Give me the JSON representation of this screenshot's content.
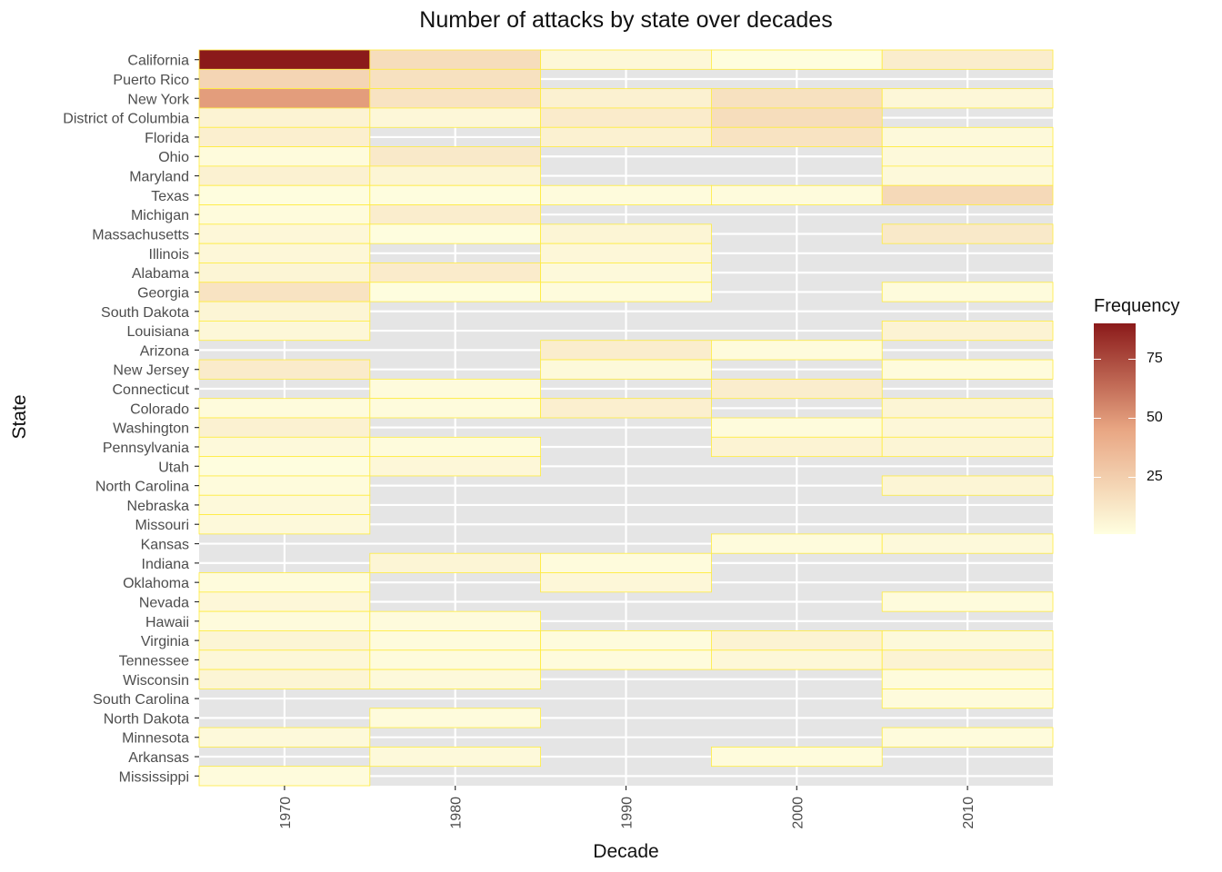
{
  "chart_data": {
    "type": "heatmap",
    "title": "Number of attacks by state over decades",
    "xlabel": "Decade",
    "ylabel": "State",
    "x_ticks": [
      "1970",
      "1980",
      "1990",
      "2000",
      "2010"
    ],
    "decades": [
      1970,
      1980,
      1990,
      2000,
      2010
    ],
    "states": [
      "California",
      "Puerto Rico",
      "New York",
      "District of Columbia",
      "Florida",
      "Ohio",
      "Maryland",
      "Texas",
      "Michigan",
      "Massachusetts",
      "Illinois",
      "Alabama",
      "Georgia",
      "South Dakota",
      "Louisiana",
      "Arizona",
      "New Jersey",
      "Connecticut",
      "Colorado",
      "Washington",
      "Pennsylvania",
      "Utah",
      "North Carolina",
      "Nebraska",
      "Missouri",
      "Kansas",
      "Indiana",
      "Oklahoma",
      "Nevada",
      "Hawaii",
      "Virginia",
      "Tennessee",
      "Wisconsin",
      "South Carolina",
      "North Dakota",
      "Minnesota",
      "Arkansas",
      "Mississippi"
    ],
    "values": [
      [
        90,
        18,
        5,
        2,
        10
      ],
      [
        22,
        16,
        null,
        null,
        null
      ],
      [
        48,
        15,
        8,
        16,
        5
      ],
      [
        7,
        5,
        11,
        18,
        null
      ],
      [
        9,
        null,
        8,
        15,
        4
      ],
      [
        3,
        12,
        null,
        null,
        4
      ],
      [
        8,
        6,
        null,
        null,
        4
      ],
      [
        2,
        2,
        3,
        3,
        20
      ],
      [
        3,
        10,
        null,
        null,
        null
      ],
      [
        5,
        2,
        6,
        null,
        12
      ],
      [
        5,
        null,
        5,
        null,
        null
      ],
      [
        6,
        11,
        4,
        null,
        null
      ],
      [
        15,
        2,
        3,
        null,
        3
      ],
      [
        6,
        null,
        null,
        null,
        null
      ],
      [
        5,
        null,
        null,
        null,
        7
      ],
      [
        null,
        null,
        10,
        3,
        null
      ],
      [
        11,
        null,
        4,
        null,
        3
      ],
      [
        null,
        3,
        null,
        10,
        null
      ],
      [
        3,
        3,
        9,
        null,
        6
      ],
      [
        8,
        null,
        null,
        3,
        5
      ],
      [
        4,
        3,
        null,
        7,
        6
      ],
      [
        2,
        5,
        null,
        null,
        null
      ],
      [
        3,
        null,
        null,
        null,
        6
      ],
      [
        4,
        null,
        null,
        null,
        null
      ],
      [
        4,
        null,
        null,
        null,
        null
      ],
      [
        null,
        null,
        null,
        3,
        4
      ],
      [
        null,
        6,
        3,
        null,
        null
      ],
      [
        3,
        null,
        5,
        null,
        null
      ],
      [
        5,
        null,
        null,
        null,
        3
      ],
      [
        3,
        3,
        null,
        null,
        null
      ],
      [
        6,
        3,
        3,
        7,
        4
      ],
      [
        5,
        3,
        3,
        5,
        7
      ],
      [
        6,
        4,
        null,
        null,
        3
      ],
      [
        null,
        null,
        null,
        null,
        3
      ],
      [
        null,
        3,
        null,
        null,
        null
      ],
      [
        4,
        null,
        null,
        null,
        3
      ],
      [
        null,
        4,
        null,
        3,
        null
      ],
      [
        3,
        null,
        null,
        null,
        null
      ]
    ],
    "color_scale": {
      "low": "#ffffe0",
      "mid": "#e8a582",
      "high": "#8b1a1a",
      "min": 1,
      "max": 90,
      "border": "#ffec3d"
    },
    "legend": {
      "title": "Frequency",
      "ticks": [
        25,
        50,
        75
      ],
      "placement": "right"
    },
    "grid": true,
    "panel_background": "#e5e5e5"
  }
}
